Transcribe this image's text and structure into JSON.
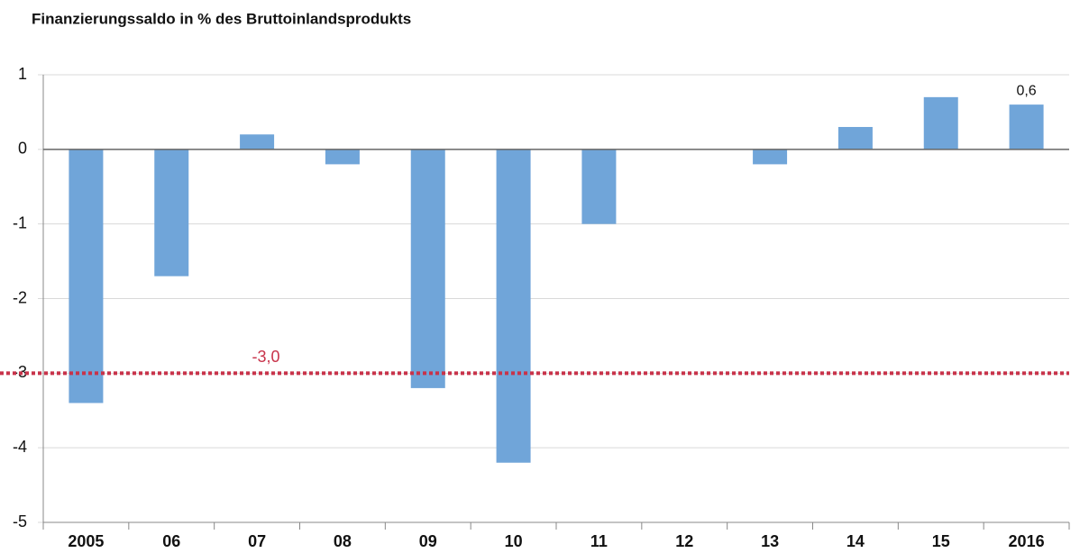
{
  "chart_data": {
    "type": "bar",
    "title": "Finanzierungssaldo in % des Bruttoinlandsprodukts",
    "categories": [
      "2005",
      "06",
      "07",
      "08",
      "09",
      "10",
      "11",
      "12",
      "13",
      "14",
      "15",
      "2016"
    ],
    "values": [
      -3.4,
      -1.7,
      0.2,
      -0.2,
      -3.2,
      -4.2,
      -1.0,
      0,
      -0.2,
      0.3,
      0.7,
      0.6
    ],
    "value_labels": [
      null,
      null,
      null,
      null,
      null,
      null,
      null,
      null,
      null,
      null,
      null,
      "0,6"
    ],
    "color": "#70a5d9",
    "ylim": [
      -5,
      1
    ],
    "yticks": [
      -5,
      -4,
      -3,
      -2,
      -1,
      0,
      1
    ],
    "grid": true,
    "reference_line": {
      "value": -3,
      "label": "-3,0",
      "color": "#c8334a"
    }
  }
}
